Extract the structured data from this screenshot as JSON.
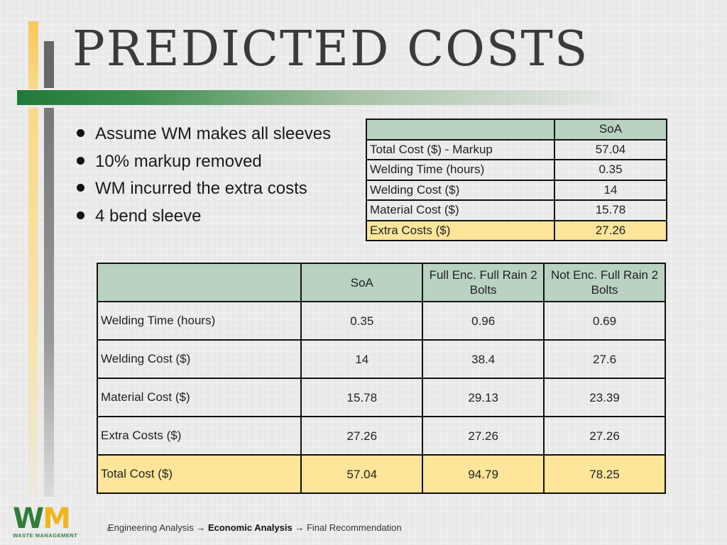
{
  "title": "PREDICTED COSTS",
  "bullets": [
    "Assume WM makes all sleeves",
    "10% markup removed",
    "WM incurred the extra costs",
    "4 bend sleeve"
  ],
  "table1": {
    "header": [
      "",
      "SoA"
    ],
    "rows": [
      [
        "Total Cost ($) - Markup",
        "57.04"
      ],
      [
        "Welding Time (hours)",
        "0.35"
      ],
      [
        "Welding Cost ($)",
        "14"
      ],
      [
        "Material Cost ($)",
        "15.78"
      ],
      [
        "Extra Costs ($)",
        "27.26"
      ]
    ]
  },
  "table2": {
    "header": [
      "",
      "SoA",
      "Full Enc. Full Rain 2 Bolts",
      "Not Enc. Full Rain 2 Bolts"
    ],
    "rows": [
      [
        "Welding Time (hours)",
        "0.35",
        "0.96",
        "0.69"
      ],
      [
        "Welding Cost ($)",
        "14",
        "38.4",
        "27.6"
      ],
      [
        "Material Cost ($)",
        "15.78",
        "29.13",
        "23.39"
      ],
      [
        "Extra Costs ($)",
        "27.26",
        "27.26",
        "27.26"
      ],
      [
        "Total Cost ($)",
        "57.04",
        "94.79",
        "78.25"
      ]
    ]
  },
  "colors": {
    "header_fill": "#b9d2c2",
    "highlight_fill": "#fde59a",
    "accent_green": "#1f7a3a",
    "accent_yellow": "#f7c75a"
  },
  "logo": {
    "letters_w": "W",
    "letters_m": "M",
    "subtitle": "WASTE MANAGEMENT",
    "registered": "®"
  },
  "footer": {
    "step1": "Engineering Analysis",
    "arrow1": "→",
    "step2": "Economic Analysis",
    "arrow2": "→",
    "step3": "Final Recommendation"
  }
}
